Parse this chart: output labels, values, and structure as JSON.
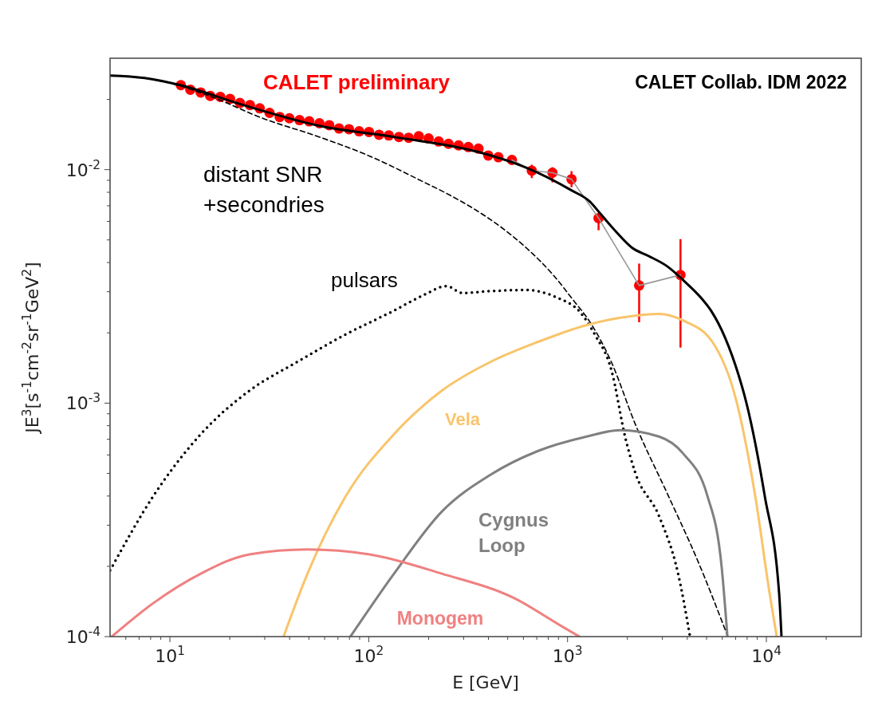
{
  "chart_data": {
    "type": "line",
    "log": "xy",
    "grid": false,
    "xlabel": "E [GeV]",
    "ylabel": "JE$^{3}$[s$^{-1}$cm$^{-2}$sr$^{-1}$GeV$^{2}$]",
    "xlim": [
      5,
      30000
    ],
    "ylim": [
      0.0001,
      0.03
    ],
    "xticks": [
      {
        "value": 6,
        "label": null
      },
      {
        "value": 7,
        "label": null
      },
      {
        "value": 8,
        "label": null
      },
      {
        "value": 9,
        "label": null
      },
      {
        "value": 10,
        "label": "10$^{1}$"
      },
      {
        "value": 20,
        "label": null
      },
      {
        "value": 30,
        "label": null
      },
      {
        "value": 40,
        "label": null
      },
      {
        "value": 50,
        "label": null
      },
      {
        "value": 60,
        "label": null
      },
      {
        "value": 70,
        "label": null
      },
      {
        "value": 80,
        "label": null
      },
      {
        "value": 90,
        "label": null
      },
      {
        "value": 100,
        "label": "10$^{2}$"
      },
      {
        "value": 200,
        "label": null
      },
      {
        "value": 300,
        "label": null
      },
      {
        "value": 400,
        "label": null
      },
      {
        "value": 500,
        "label": null
      },
      {
        "value": 600,
        "label": null
      },
      {
        "value": 700,
        "label": null
      },
      {
        "value": 800,
        "label": null
      },
      {
        "value": 900,
        "label": null
      },
      {
        "value": 1000,
        "label": "10$^{3}$"
      },
      {
        "value": 2000,
        "label": null
      },
      {
        "value": 3000,
        "label": null
      },
      {
        "value": 4000,
        "label": null
      },
      {
        "value": 5000,
        "label": null
      },
      {
        "value": 6000,
        "label": null
      },
      {
        "value": 7000,
        "label": null
      },
      {
        "value": 8000,
        "label": null
      },
      {
        "value": 9000,
        "label": null
      },
      {
        "value": 10000,
        "label": "10$^{4}$"
      },
      {
        "value": 20000,
        "label": null
      }
    ],
    "yticks": [
      {
        "value": 0.0001,
        "label": "10$^{-4}$"
      },
      {
        "value": 0.0002,
        "label": null
      },
      {
        "value": 0.0003,
        "label": null
      },
      {
        "value": 0.0004,
        "label": null
      },
      {
        "value": 0.0005,
        "label": null
      },
      {
        "value": 0.0006,
        "label": null
      },
      {
        "value": 0.0007,
        "label": null
      },
      {
        "value": 0.0008,
        "label": null
      },
      {
        "value": 0.0009,
        "label": null
      },
      {
        "value": 0.001,
        "label": "10$^{-3}$"
      },
      {
        "value": 0.002,
        "label": null
      },
      {
        "value": 0.003,
        "label": null
      },
      {
        "value": 0.004,
        "label": null
      },
      {
        "value": 0.005,
        "label": null
      },
      {
        "value": 0.006,
        "label": null
      },
      {
        "value": 0.007,
        "label": null
      },
      {
        "value": 0.008,
        "label": null
      },
      {
        "value": 0.009,
        "label": null
      },
      {
        "value": 0.01,
        "label": "10$^{-2}$"
      },
      {
        "value": 0.02,
        "label": null
      }
    ],
    "annotations": [
      "CALET Collab. IDM 2022"
    ],
    "series": [
      {
        "name": "CALET preliminary",
        "type": "scatter",
        "marker": "circle",
        "color": "#ff0000",
        "x": [
          11.35,
          12.67,
          14.28,
          15.95,
          17.92,
          20.08,
          22.49,
          25.28,
          28.31,
          31.71,
          35.65,
          39.9,
          44.87,
          50.2,
          56.5,
          63.3,
          70.9,
          79.6,
          89.5,
          100.3,
          112.7,
          126.2,
          141.9,
          158.9,
          178.6,
          200.1,
          224.9,
          251.9,
          283.1,
          317.1,
          356.5,
          399.3,
          448.7,
          524.8,
          660.7,
          839.5,
          1047,
          1432,
          2291,
          3698
        ],
        "values": [
          0.023,
          0.022,
          0.0214,
          0.0207,
          0.0205,
          0.0201,
          0.0193,
          0.0189,
          0.0183,
          0.0175,
          0.0168,
          0.0166,
          0.0163,
          0.0161,
          0.0158,
          0.0155,
          0.015,
          0.0149,
          0.0146,
          0.0145,
          0.0141,
          0.014,
          0.0138,
          0.0137,
          0.0139,
          0.0136,
          0.0132,
          0.0129,
          0.0127,
          0.0125,
          0.0123,
          0.0115,
          0.0113,
          0.011,
          0.0099,
          0.0097,
          0.0091,
          0.0062,
          0.00319,
          0.00354
        ],
        "errors": [
          null,
          null,
          null,
          null,
          null,
          null,
          null,
          null,
          null,
          null,
          null,
          null,
          null,
          null,
          null,
          null,
          null,
          null,
          null,
          null,
          null,
          null,
          null,
          null,
          null,
          null,
          null,
          null,
          null,
          null,
          null,
          null,
          null,
          null,
          [
            0.0092,
            0.0105
          ],
          [
            0.00882,
            0.01024
          ],
          [
            0.00841,
            0.00985
          ],
          [
            0.0055,
            0.00649
          ],
          [
            0.00222,
            0.00396
          ],
          [
            0.00173,
            0.00504
          ]
        ]
      },
      {
        "color": "#999999",
        "x": [
          524.8,
          660.7,
          839.5,
          1047,
          1432,
          2291,
          3698
        ],
        "values": [
          0.011,
          0.0099,
          0.0097,
          0.0091,
          0.0062,
          0.00319,
          0.00354
        ]
      },
      {
        "color": "#000000",
        "line_style": "solid",
        "x": [
          5,
          7.45,
          11.3,
          22.5,
          56.5,
          142,
          356,
          619,
          1047,
          1294,
          1459,
          1754,
          2109,
          2535,
          3162,
          3908,
          4699,
          5297,
          6194,
          7244,
          7870,
          9817,
          11590,
          11912
        ],
        "values": [
          0.0253,
          0.0247,
          0.023,
          0.0191,
          0.0154,
          0.0137,
          0.0119,
          0.0102,
          0.00815,
          0.0073,
          0.00649,
          0.00542,
          0.00463,
          0.00428,
          0.00386,
          0.0033,
          0.00282,
          0.00247,
          0.00191,
          0.00132,
          0.00103,
          0.000399,
          0.000153,
          0.0001
        ]
      },
      {
        "name": "distant SNR\n+secondries",
        "type": "line",
        "color": "#000000",
        "line_style": "dashed",
        "x": [
          5,
          7.45,
          11.3,
          16.0,
          29.6,
          55.0,
          101,
          187,
          247,
          347,
          457,
          619,
          839,
          1076,
          1294,
          1660,
          2188,
          3221,
          4487,
          6400
        ],
        "values": [
          0.0253,
          0.0247,
          0.0228,
          0.0206,
          0.01654,
          0.0139,
          0.01143,
          0.00889,
          0.0079,
          0.0067,
          0.00572,
          0.00463,
          0.00357,
          0.00274,
          0.00223,
          0.0015,
          0.000815,
          0.000399,
          0.000214,
          0.0001
        ]
      },
      {
        "name": "pulsars",
        "type": "line",
        "color": "#000000",
        "line_style": "dotted",
        "x": [
          5,
          8.24,
          14.3,
          25.1,
          43.6,
          76.6,
          134,
          187,
          247,
          296,
          391,
          619,
          895,
          1148,
          1380,
          1660,
          1959,
          2188,
          2884,
          3597,
          4130
        ],
        "values": [
          0.000192,
          0.000399,
          0.000736,
          0.00113,
          0.0015,
          0.00197,
          0.00249,
          0.00289,
          0.00317,
          0.00296,
          0.00301,
          0.00305,
          0.00282,
          0.00247,
          0.00195,
          0.00139,
          0.000702,
          0.000505,
          0.000328,
          0.000186,
          0.0001
        ]
      },
      {
        "name": "Vela",
        "type": "line",
        "color": "#f9c46b",
        "line_style": "solid",
        "x": [
          37.3,
          49.2,
          76.6,
          134,
          233,
          409,
          711,
          1247,
          2188,
          2884,
          3802,
          5346,
          7047,
          8790,
          10380,
          11272
        ],
        "values": [
          0.0001,
          0.000186,
          0.000399,
          0.000736,
          0.00113,
          0.0015,
          0.00183,
          0.00216,
          0.00237,
          0.00241,
          0.00226,
          0.00183,
          0.00103,
          0.000399,
          0.000153,
          0.0001
        ]
      },
      {
        "name": "Cygnus\nLoop",
        "type": "line",
        "color": "#808080",
        "line_style": "solid",
        "x": [
          80.9,
          134,
          233,
          409,
          711,
          1247,
          1837,
          2884,
          3802,
          5058,
          5970,
          6368
        ],
        "values": [
          0.0001,
          0.000186,
          0.000343,
          0.000493,
          0.000624,
          0.000719,
          0.000766,
          0.000719,
          0.00061,
          0.000399,
          0.000195,
          0.0001
        ]
      },
      {
        "name": "Monogem",
        "type": "line",
        "color": "#f08080",
        "line_style": "solid",
        "x": [
          5.1,
          8.24,
          14.3,
          25.1,
          49.2,
          101,
          233,
          540,
          946,
          1148
        ],
        "values": [
          0.0001,
          0.000139,
          0.000186,
          0.000225,
          0.000236,
          0.000225,
          0.000186,
          0.000146,
          0.00011,
          0.0001
        ]
      }
    ]
  }
}
